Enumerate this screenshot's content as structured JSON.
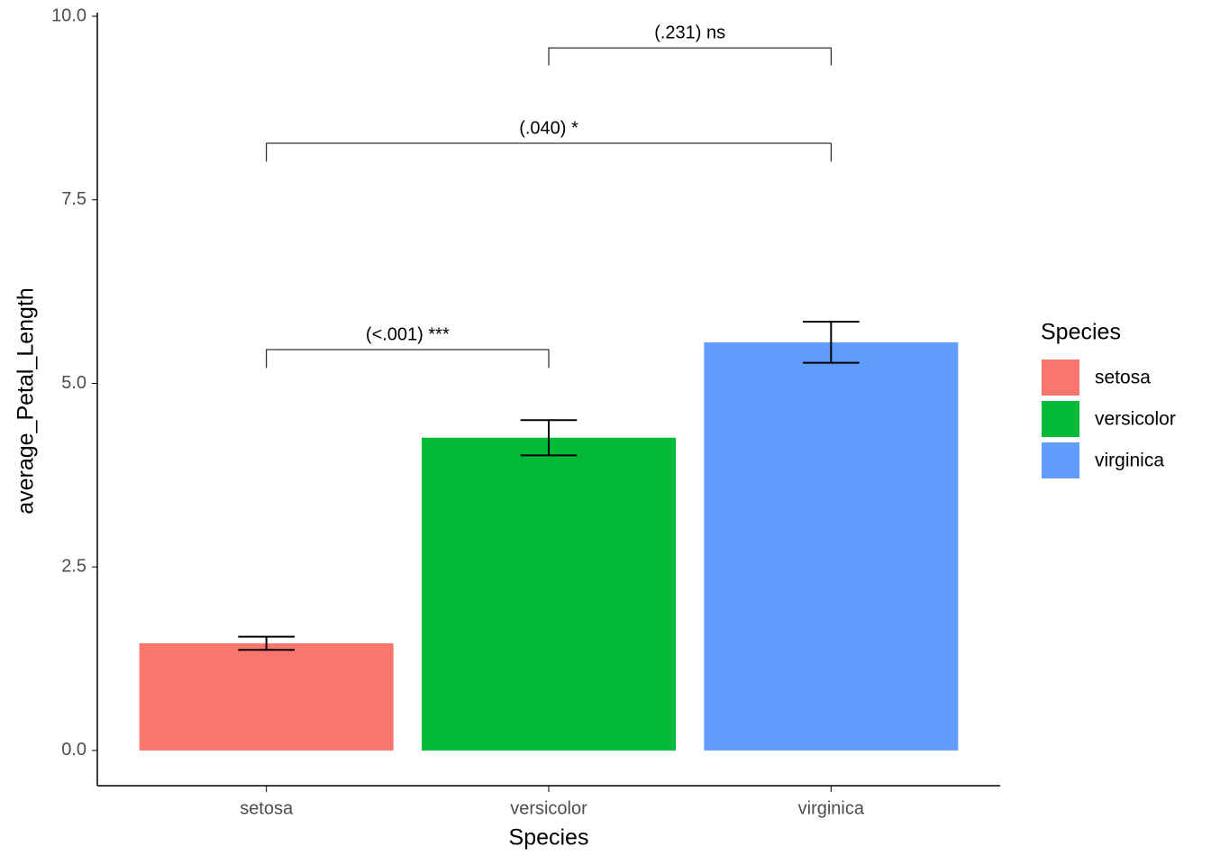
{
  "chart_data": {
    "type": "bar",
    "x_label": "Species",
    "y_label": "average_Petal_Length",
    "categories": [
      "setosa",
      "versicolor",
      "virginica"
    ],
    "values": [
      1.46,
      4.26,
      5.56
    ],
    "errors": [
      0.09,
      0.24,
      0.28
    ],
    "colors": [
      "#F8766D",
      "#00BA38",
      "#619CFF"
    ],
    "ylim": [
      -0.48,
      10.05
    ],
    "yticks": [
      {
        "value": 0,
        "label": "0.0"
      },
      2.5,
      {
        "value": 5,
        "label": "5.0"
      },
      7.5,
      {
        "value": 10,
        "label": "10.0"
      }
    ],
    "legend": {
      "title": "Species",
      "position": "right"
    },
    "annotations": [
      {
        "text": "(<.001) ***",
        "from": "setosa",
        "to": "versicolor",
        "y": 5.46,
        "ybottom": 5.21
      },
      {
        "text": "(.040) *",
        "from": "setosa",
        "to": "virginica",
        "y": 8.27,
        "ybottom": 8.02
      },
      {
        "text": "(.231) ns",
        "from": "versicolor",
        "to": "virginica",
        "y": 9.57,
        "ybottom": 9.33
      }
    ]
  }
}
